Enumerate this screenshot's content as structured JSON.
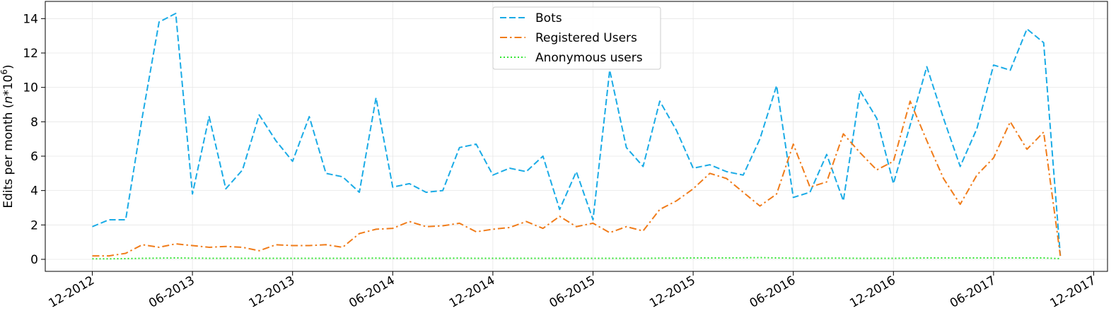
{
  "chart_data": {
    "type": "line",
    "ylabel_prefix": "Edits per month (",
    "ylabel_var": "n",
    "ylabel_mid": "*10",
    "ylabel_exp": "6",
    "ylabel_suffix": ")",
    "grid": true,
    "legend_position": "top-center",
    "x_ticks": [
      "12-2012",
      "06-2013",
      "12-2013",
      "06-2014",
      "12-2014",
      "06-2015",
      "12-2015",
      "06-2016",
      "12-2016",
      "06-2017",
      "12-2017"
    ],
    "x_range_months": [
      0,
      60
    ],
    "ylim": [
      -0.7,
      15
    ],
    "y_ticks": [
      0,
      2,
      4,
      6,
      8,
      10,
      12,
      14
    ],
    "series": [
      {
        "name": "Bots",
        "color": "#1aabe6",
        "dash": "dashed",
        "values": [
          1.9,
          2.3,
          2.3,
          8.3,
          13.8,
          14.3,
          3.8,
          8.3,
          4.1,
          5.2,
          8.4,
          6.9,
          5.7,
          8.3,
          5.0,
          4.8,
          3.9,
          9.4,
          4.2,
          4.4,
          3.9,
          4.0,
          6.5,
          6.7,
          4.9,
          5.3,
          5.1,
          6.0,
          2.9,
          5.1,
          2.3,
          11.0,
          6.5,
          5.4,
          9.2,
          7.5,
          5.3,
          5.5,
          5.1,
          4.9,
          7.0,
          10.1,
          3.6,
          3.9,
          6.1,
          3.4,
          9.8,
          8.2,
          4.4,
          7.8,
          11.2,
          8.2,
          5.4,
          7.6,
          11.3,
          11.0,
          13.4,
          12.6,
          0.2
        ]
      },
      {
        "name": "Registered Users",
        "color": "#f07c1a",
        "dash": "dashdot",
        "values": [
          0.2,
          0.2,
          0.35,
          0.85,
          0.7,
          0.9,
          0.8,
          0.7,
          0.75,
          0.7,
          0.5,
          0.85,
          0.8,
          0.8,
          0.85,
          0.7,
          1.5,
          1.75,
          1.8,
          2.2,
          1.9,
          1.95,
          2.1,
          1.6,
          1.75,
          1.85,
          2.2,
          1.8,
          2.5,
          1.9,
          2.1,
          1.55,
          1.9,
          1.65,
          2.9,
          3.4,
          4.1,
          5.0,
          4.7,
          3.9,
          3.1,
          3.8,
          6.7,
          4.2,
          4.5,
          7.3,
          6.2,
          5.2,
          5.7,
          9.2,
          6.9,
          4.7,
          3.2,
          4.9,
          5.9,
          8.0,
          6.4,
          7.4,
          0.2
        ]
      },
      {
        "name": "Anonymous users",
        "color": "#33e633",
        "dash": "dotted",
        "values": [
          0.03,
          0.03,
          0.04,
          0.06,
          0.07,
          0.08,
          0.07,
          0.06,
          0.06,
          0.06,
          0.06,
          0.06,
          0.06,
          0.06,
          0.06,
          0.06,
          0.06,
          0.07,
          0.06,
          0.06,
          0.06,
          0.06,
          0.07,
          0.06,
          0.06,
          0.06,
          0.06,
          0.06,
          0.06,
          0.06,
          0.06,
          0.06,
          0.06,
          0.06,
          0.07,
          0.07,
          0.08,
          0.08,
          0.08,
          0.09,
          0.1,
          0.08,
          0.07,
          0.06,
          0.07,
          0.07,
          0.06,
          0.06,
          0.06,
          0.07,
          0.08,
          0.08,
          0.08,
          0.08,
          0.08,
          0.08,
          0.08,
          0.08,
          0.04
        ]
      }
    ]
  }
}
